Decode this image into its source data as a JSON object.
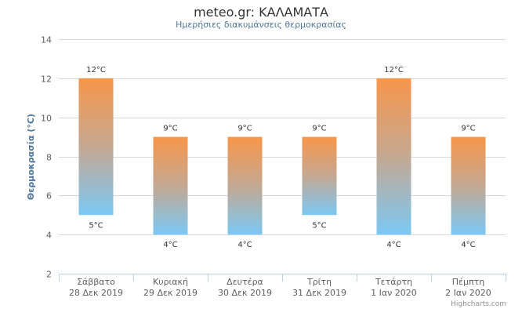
{
  "chart_data": {
    "type": "bar",
    "subtype": "columnrange",
    "title": "meteo.gr: ΚΑΛΑΜΑΤΑ",
    "subtitle": "Ημερήσιες διακυμάνσεις θερμοκρασίας",
    "ylabel": "Θερμοκρασία (°C)",
    "xlabel": "",
    "ylim": [
      2,
      14
    ],
    "yticks": [
      2,
      4,
      6,
      8,
      10,
      12,
      14
    ],
    "grid": true,
    "unit": "°C",
    "categories": [
      [
        "Σάββατο",
        "28 Δεκ 2019"
      ],
      [
        "Κυριακή",
        "29 Δεκ 2019"
      ],
      [
        "Δευτέρα",
        "30 Δεκ 2019"
      ],
      [
        "Τρίτη",
        "31 Δεκ 2019"
      ],
      [
        "Τετάρτη",
        "1 Ιαν 2020"
      ],
      [
        "Πέμπτη",
        "2 Ιαν 2020"
      ]
    ],
    "series": [
      {
        "low": [
          5,
          4,
          4,
          5,
          4,
          4
        ],
        "high": [
          12,
          9,
          9,
          9,
          12,
          9
        ]
      }
    ],
    "colors": {
      "top": "#f7964a",
      "bottom": "#7cc8f4"
    },
    "credits": "Highcharts.com"
  }
}
